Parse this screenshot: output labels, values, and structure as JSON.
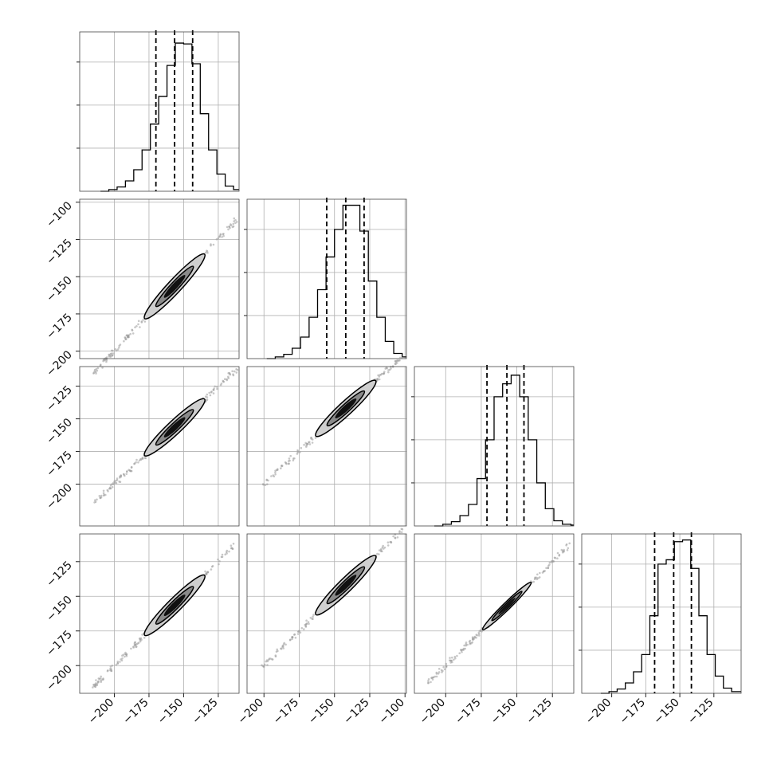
{
  "chart_data": {
    "type": "corner",
    "title": "",
    "n_params": 4,
    "params": [
      {
        "marginal_range": [
          -225,
          -110
        ],
        "ticks": [
          -200,
          -175,
          -150,
          -125
        ],
        "hist": [
          [
            -210,
            0
          ],
          [
            -204,
            2
          ],
          [
            -198,
            5
          ],
          [
            -192,
            12
          ],
          [
            -186,
            25
          ],
          [
            -180,
            48
          ],
          [
            -174,
            78
          ],
          [
            -168,
            110
          ],
          [
            -162,
            146
          ],
          [
            -156,
            172
          ],
          [
            -150,
            171
          ],
          [
            -144,
            148
          ],
          [
            -138,
            90
          ],
          [
            -132,
            48
          ],
          [
            -126,
            20
          ],
          [
            -120,
            6
          ],
          [
            -114,
            2
          ]
        ],
        "hist_max": 185,
        "quantiles": [
          -170.0,
          -156.5,
          -143.5
        ]
      },
      {
        "marginal_range": [
          -212,
          -99
        ],
        "ticks": [
          -200,
          -175,
          -150,
          -125,
          -100
        ],
        "hist": [
          [
            -198,
            0
          ],
          [
            -192,
            2
          ],
          [
            -186,
            5
          ],
          [
            -180,
            12
          ],
          [
            -174,
            25
          ],
          [
            -168,
            48
          ],
          [
            -162,
            80
          ],
          [
            -156,
            118
          ],
          [
            -150,
            150
          ],
          [
            -144,
            178
          ],
          [
            -138,
            178
          ],
          [
            -132,
            148
          ],
          [
            -126,
            90
          ],
          [
            -120,
            48
          ],
          [
            -114,
            20
          ],
          [
            -108,
            6
          ],
          [
            -102,
            2
          ]
        ],
        "hist_max": 185,
        "quantiles": [
          -155.5,
          -142.0,
          -129.0
        ]
      },
      {
        "marginal_range": [
          -222,
          -110
        ],
        "ticks": [
          -200,
          -175,
          -150,
          -125
        ],
        "hist": [
          [
            -208,
            0
          ],
          [
            -202,
            2
          ],
          [
            -196,
            5
          ],
          [
            -190,
            12
          ],
          [
            -184,
            25
          ],
          [
            -178,
            55
          ],
          [
            -172,
            100
          ],
          [
            -166,
            150
          ],
          [
            -160,
            165
          ],
          [
            -154,
            175
          ],
          [
            -148,
            150
          ],
          [
            -142,
            100
          ],
          [
            -136,
            50
          ],
          [
            -130,
            20
          ],
          [
            -124,
            6
          ],
          [
            -118,
            2
          ],
          [
            -112,
            1
          ]
        ],
        "hist_max": 185,
        "quantiles": [
          -171.0,
          -157.0,
          -145.0
        ]
      },
      {
        "marginal_range": [
          -222,
          -105
        ],
        "ticks": [
          -200,
          -175,
          -150,
          -125
        ],
        "hist": [
          [
            -208,
            0
          ],
          [
            -202,
            2
          ],
          [
            -196,
            5
          ],
          [
            -190,
            12
          ],
          [
            -184,
            25
          ],
          [
            -178,
            45
          ],
          [
            -172,
            90
          ],
          [
            -166,
            150
          ],
          [
            -160,
            155
          ],
          [
            -154,
            176
          ],
          [
            -148,
            178
          ],
          [
            -142,
            145
          ],
          [
            -136,
            90
          ],
          [
            -130,
            45
          ],
          [
            -124,
            20
          ],
          [
            -118,
            6
          ],
          [
            -112,
            2
          ]
        ],
        "hist_max": 185,
        "quantiles": [
          -168.5,
          -154.5,
          -141.5
        ]
      }
    ],
    "pairs": [
      {
        "row": 1,
        "col": 0,
        "xlim": [
          -225,
          -110
        ],
        "ylim": [
          -205,
          -98
        ],
        "y_ticks": [
          -200,
          -175,
          -150,
          -125,
          -100
        ],
        "x_ticks": []
      },
      {
        "row": 2,
        "col": 0,
        "xlim": [
          -225,
          -110
        ],
        "ylim": [
          -232,
          -110
        ],
        "y_ticks": [
          -200,
          -175,
          -150,
          -125
        ],
        "x_ticks": []
      },
      {
        "row": 2,
        "col": 1,
        "xlim": [
          -212,
          -99
        ],
        "ylim": [
          -232,
          -110
        ],
        "y_ticks": [],
        "x_ticks": []
      },
      {
        "row": 3,
        "col": 0,
        "xlim": [
          -225,
          -110
        ],
        "ylim": [
          -220,
          -105
        ],
        "y_ticks": [
          -200,
          -175,
          -150,
          -125
        ],
        "x_ticks": [
          -200,
          -175,
          -150,
          -125
        ]
      },
      {
        "row": 3,
        "col": 1,
        "xlim": [
          -212,
          -99
        ],
        "ylim": [
          -220,
          -105
        ],
        "y_ticks": [],
        "x_ticks": [
          -200,
          -175,
          -150,
          -125,
          -100
        ]
      },
      {
        "row": 3,
        "col": 2,
        "xlim": [
          -222,
          -110
        ],
        "ylim": [
          -220,
          -105
        ],
        "y_ticks": [],
        "x_ticks": [
          -200,
          -175,
          -150,
          -125
        ]
      }
    ],
    "grid": true,
    "colors": {
      "line": "#000000",
      "grid": "#b0b0b0",
      "frame": "#444444",
      "points": "#9a9a9a"
    }
  }
}
